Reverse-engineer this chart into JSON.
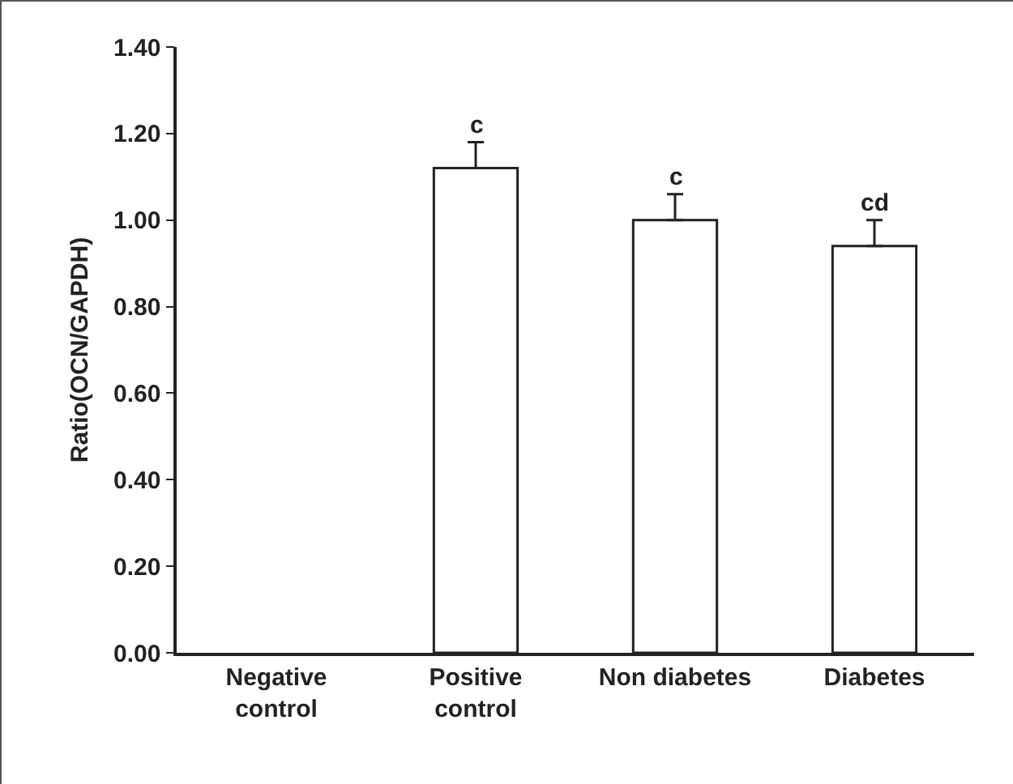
{
  "chart_data": {
    "type": "bar",
    "ylabel": "Ratio(OCN/GAPDH)",
    "categories": [
      "Negative\ncontrol",
      "Positive\ncontrol",
      "Non diabetes",
      "Diabetes"
    ],
    "values": [
      null,
      1.12,
      1.0,
      0.94
    ],
    "errors": [
      null,
      [
        1.12,
        1.18
      ],
      [
        1.0,
        1.06
      ],
      [
        0.94,
        1.0
      ]
    ],
    "color": "#ffffff",
    "ylim": [
      0,
      1.4
    ],
    "yticks": [
      {
        "value": 0,
        "label": "0.00"
      },
      {
        "value": 0.2,
        "label": "0.20"
      },
      {
        "value": 0.4,
        "label": "0.40"
      },
      {
        "value": 0.6,
        "label": "0.60"
      },
      {
        "value": 0.8,
        "label": "0.80"
      },
      {
        "value": 1.0,
        "label": "1.00"
      },
      {
        "value": 1.2,
        "label": "1.20"
      },
      {
        "value": 1.4,
        "label": "1.40"
      }
    ],
    "annotations": [
      {
        "text": "c",
        "x": "Positive\ncontrol",
        "y": 1.18
      },
      {
        "text": "c",
        "x": "Non diabetes",
        "y": 1.06
      },
      {
        "text": "cd",
        "x": "Diabetes",
        "y": 1.0
      }
    ],
    "grid": false
  }
}
